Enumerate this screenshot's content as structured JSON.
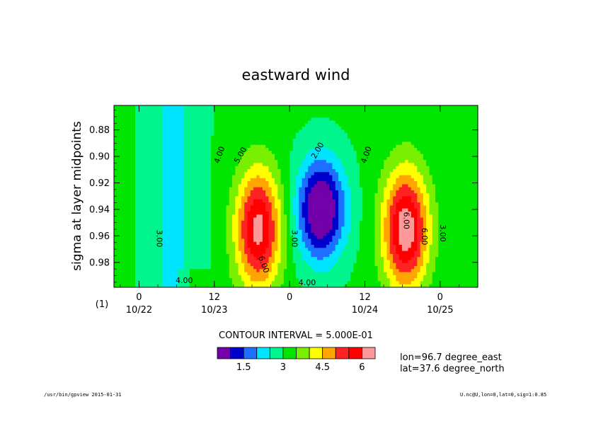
{
  "chart_data": {
    "type": "heatmap",
    "title": "eastward wind",
    "ylabel": "sigma at layer midpoints",
    "y_reversed": true,
    "ylim": [
      0.9988,
      0.8615
    ],
    "y_ticks": [
      "0.88",
      "0.90",
      "0.92",
      "0.94",
      "0.96",
      "0.98"
    ],
    "y_tick_values": [
      0.88,
      0.9,
      0.92,
      0.94,
      0.96,
      0.98
    ],
    "x_ticks": [
      {
        "hour": "0",
        "date": "10/22",
        "t": 0.0
      },
      {
        "hour": "12",
        "date": "10/23",
        "t": 12.0
      },
      {
        "hour": "0",
        "date": "",
        "t": 24.0
      },
      {
        "hour": "12",
        "date": "10/24",
        "t": 36.0
      },
      {
        "hour": "0",
        "date": "10/25",
        "t": 48.0
      }
    ],
    "x_index_label": "(1)",
    "xlim": [
      -4,
      54
    ],
    "contour_interval_text": "CONTOUR INTERVAL = 5.000E-01",
    "contour_labels": [
      {
        "text": "3.00",
        "t": 2.8,
        "sigma": 0.962,
        "rot": 90
      },
      {
        "text": "4.00",
        "t": 7.2,
        "sigma": 0.9955,
        "rot": 0
      },
      {
        "text": "4.00",
        "t": 13.2,
        "sigma": 0.8995,
        "rot": -70
      },
      {
        "text": "5.00",
        "t": 16.5,
        "sigma": 0.9,
        "rot": -60
      },
      {
        "text": "6.00",
        "t": 19.5,
        "sigma": 0.9822,
        "rot": 70
      },
      {
        "text": "3.00",
        "t": 24.4,
        "sigma": 0.962,
        "rot": 90
      },
      {
        "text": "2.00",
        "t": 28.8,
        "sigma": 0.8965,
        "rot": -60
      },
      {
        "text": "4.00",
        "t": 26.8,
        "sigma": 0.9972,
        "rot": 0
      },
      {
        "text": "4.00",
        "t": 36.6,
        "sigma": 0.8995,
        "rot": -70
      },
      {
        "text": "6.00",
        "t": 42.2,
        "sigma": 0.9485,
        "rot": 90
      },
      {
        "text": "6.00",
        "t": 45.1,
        "sigma": 0.9605,
        "rot": 90
      },
      {
        "text": "3.00",
        "t": 48.0,
        "sigma": 0.958,
        "rot": 90
      }
    ],
    "colorbar": {
      "colors": [
        "#7300a8",
        "#0000cd",
        "#1e6fff",
        "#00e5ff",
        "#00f58c",
        "#00e600",
        "#78f000",
        "#ffff00",
        "#ffa500",
        "#ff2222",
        "#ff0000",
        "#ff9999"
      ],
      "tick_labels": [
        "1.5",
        "3",
        "4.5",
        "6"
      ],
      "tick_after_box": [
        2,
        5,
        8,
        11
      ]
    },
    "color_scale": {
      "levels": [
        1.5,
        2.0,
        2.5,
        3.0,
        3.5,
        4.0,
        4.5,
        5.0,
        5.5,
        6.0,
        6.5
      ]
    },
    "model": {
      "day1_valley": {
        "t": 5.5,
        "sigma0": 0.9988,
        "amp": -0.7,
        "wt": 4.5
      },
      "day2_valley": {
        "t": 29.0,
        "sigma0": 0.94,
        "amp": -2.9,
        "wt": 3.8,
        "ws": 0.038
      },
      "day1_peak": {
        "t": 19.0,
        "sigma0": 0.955,
        "amp": 3.1,
        "wt": 3.6,
        "ws": 0.045
      },
      "day2_peak": {
        "t": 42.5,
        "sigma0": 0.955,
        "amp": 3.3,
        "wt": 3.6,
        "ws": 0.045
      },
      "background": 3.6
    }
  },
  "info": {
    "lon": "lon=96.7 degree_east",
    "lat": "lat=37.6 degree_north"
  },
  "footer": {
    "left": "/usr/bin/gpview  2015-01-31",
    "right": "U.nc@U,lon=0,lat=0,sig=1:0.85"
  }
}
